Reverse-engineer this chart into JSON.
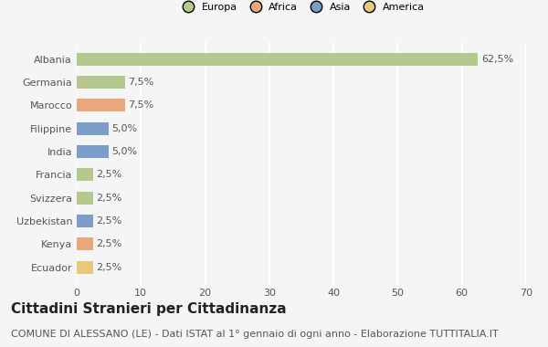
{
  "countries": [
    "Albania",
    "Germania",
    "Marocco",
    "Filippine",
    "India",
    "Francia",
    "Svizzera",
    "Uzbekistan",
    "Kenya",
    "Ecuador"
  ],
  "values": [
    62.5,
    7.5,
    7.5,
    5.0,
    5.0,
    2.5,
    2.5,
    2.5,
    2.5,
    2.5
  ],
  "colors": [
    "#b5c98e",
    "#b5c98e",
    "#e8a87c",
    "#7b9dc7",
    "#7b9dc7",
    "#b5c98e",
    "#b5c98e",
    "#7b9dc7",
    "#e8a87c",
    "#e8c97c"
  ],
  "labels": [
    "62,5%",
    "7,5%",
    "7,5%",
    "5,0%",
    "5,0%",
    "2,5%",
    "2,5%",
    "2,5%",
    "2,5%",
    "2,5%"
  ],
  "legend_labels": [
    "Europa",
    "Africa",
    "Asia",
    "America"
  ],
  "legend_colors": [
    "#b5c98e",
    "#e8a87c",
    "#7b9dc7",
    "#e8c97c"
  ],
  "xlim": [
    0,
    70
  ],
  "xticks": [
    0,
    10,
    20,
    30,
    40,
    50,
    60,
    70
  ],
  "title": "Cittadini Stranieri per Cittadinanza",
  "subtitle": "COMUNE DI ALESSANO (LE) - Dati ISTAT al 1° gennaio di ogni anno - Elaborazione TUTTITALIA.IT",
  "background_color": "#f5f5f5",
  "bar_height": 0.55,
  "grid_color": "#ffffff",
  "title_fontsize": 11,
  "subtitle_fontsize": 8,
  "label_fontsize": 8,
  "tick_fontsize": 8,
  "legend_fontsize": 8
}
